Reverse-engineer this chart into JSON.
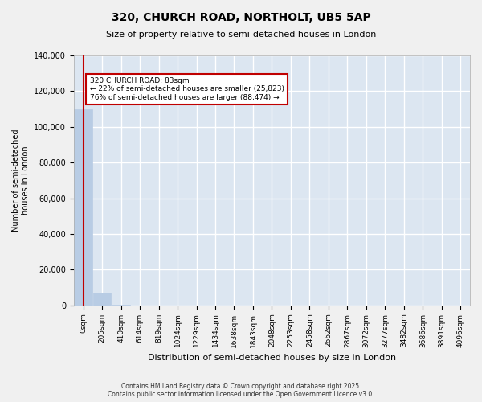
{
  "title": "320, CHURCH ROAD, NORTHOLT, UB5 5AP",
  "subtitle": "Size of property relative to semi-detached houses in London",
  "xlabel": "Distribution of semi-detached houses by size in London",
  "ylabel": "Number of semi-detached\nhouses in London",
  "property_size": 83,
  "annotation_label": "320 CHURCH ROAD: 83sqm",
  "annotation_line1": "← 22% of semi-detached houses are smaller (25,823)",
  "annotation_line2": "76% of semi-detached houses are larger (88,474) →",
  "bar_color": "#b8cce4",
  "highlight_color": "#c00000",
  "plot_bg_color": "#dce6f1",
  "grid_color": "#ffffff",
  "footnote": "Contains HM Land Registry data © Crown copyright and database right 2025.\nContains public sector information licensed under the Open Government Licence v3.0.",
  "bin_labels": [
    "0sqm",
    "205sqm",
    "410sqm",
    "614sqm",
    "819sqm",
    "1024sqm",
    "1229sqm",
    "1434sqm",
    "1638sqm",
    "1843sqm",
    "2048sqm",
    "2253sqm",
    "2458sqm",
    "2662sqm",
    "2867sqm",
    "3072sqm",
    "3277sqm",
    "3482sqm",
    "3686sqm",
    "3891sqm",
    "4096sqm"
  ],
  "counts": [
    110000,
    7000,
    500,
    100,
    50,
    20,
    10,
    5,
    3,
    2,
    1,
    1,
    1,
    1,
    1,
    1,
    1,
    1,
    1,
    1,
    0
  ],
  "ylim": [
    0,
    140000
  ],
  "yticks": [
    0,
    20000,
    40000,
    60000,
    80000,
    100000,
    120000,
    140000
  ]
}
